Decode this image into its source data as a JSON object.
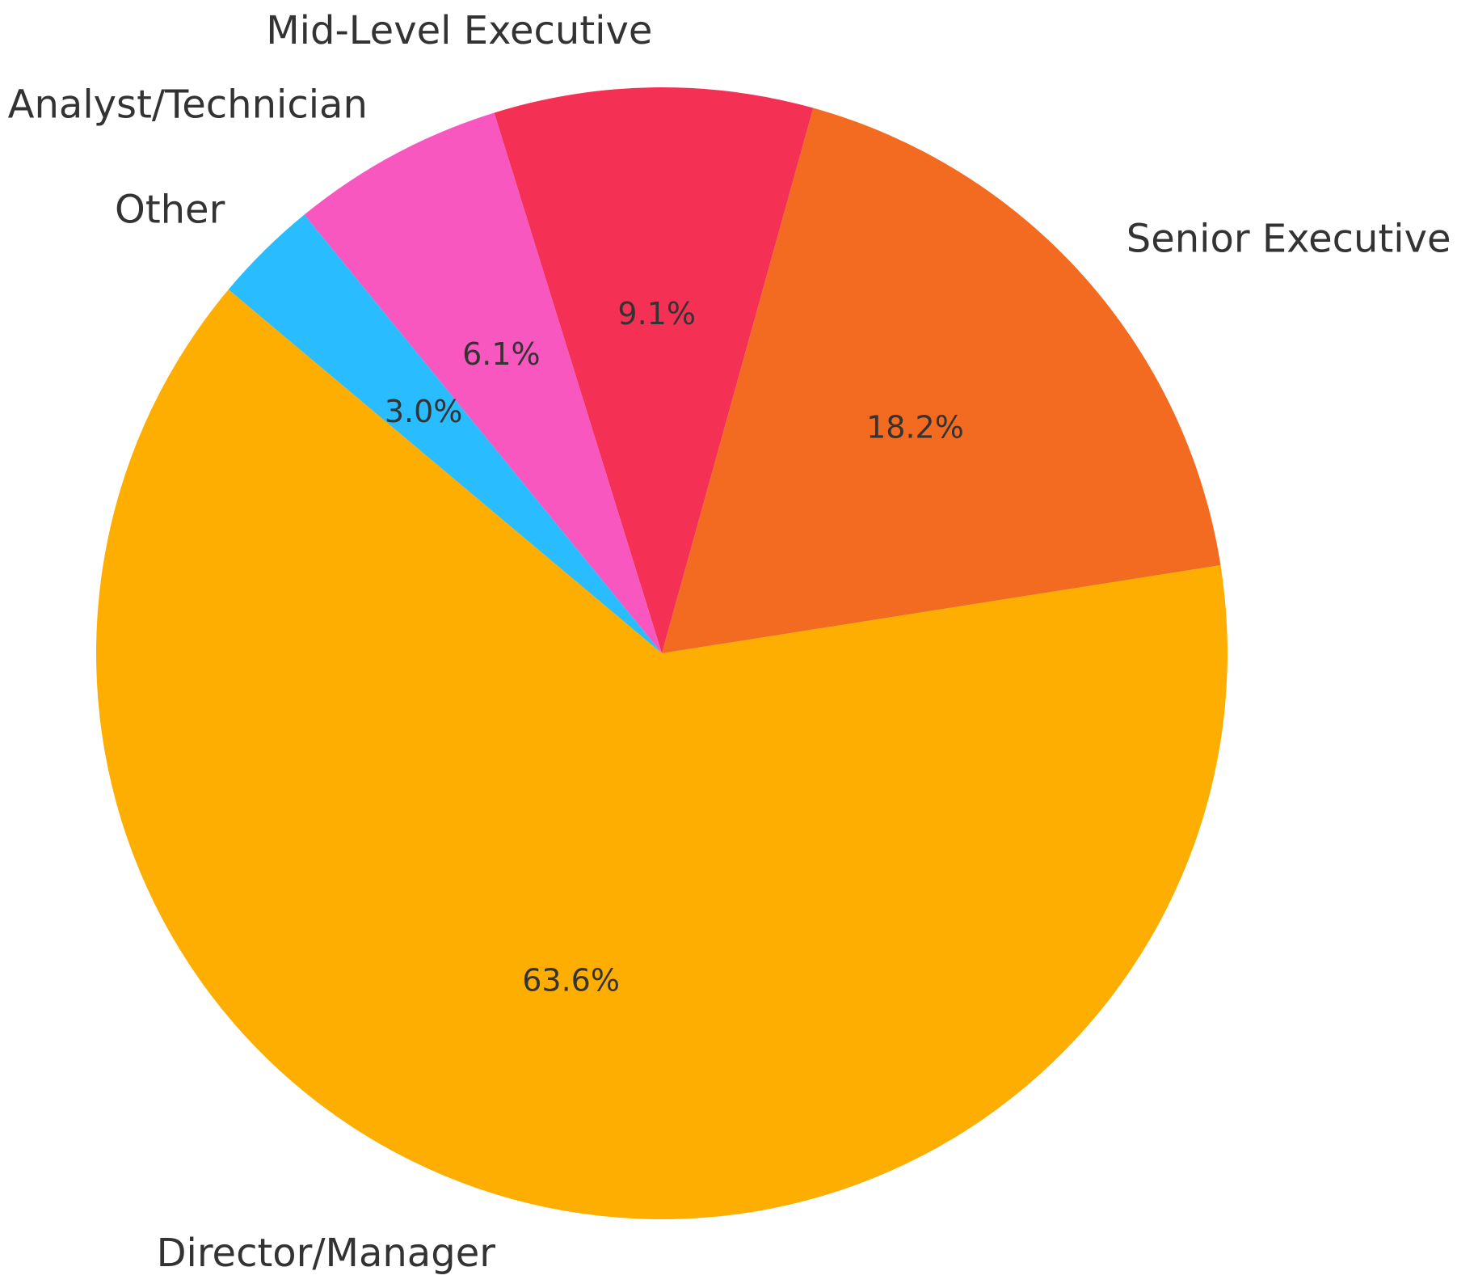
{
  "chart_data": {
    "type": "pie",
    "title": "",
    "start_angle_deg": 140,
    "direction": "counterclockwise",
    "slices": [
      {
        "label": "Director/Manager",
        "value": 63.6,
        "pct_label": "63.6%",
        "color": "#FDAE00"
      },
      {
        "label": "Senior Executive",
        "value": 18.2,
        "pct_label": "18.2%",
        "color": "#F26B21"
      },
      {
        "label": "Mid-Level Executive",
        "value": 9.1,
        "pct_label": "9.1%",
        "color": "#F43155"
      },
      {
        "label": "Analyst/Technician",
        "value": 6.1,
        "pct_label": "6.1%",
        "color": "#F857C0"
      },
      {
        "label": "Other",
        "value": 3.0,
        "pct_label": "3.0%",
        "color": "#29BCFF"
      }
    ]
  }
}
